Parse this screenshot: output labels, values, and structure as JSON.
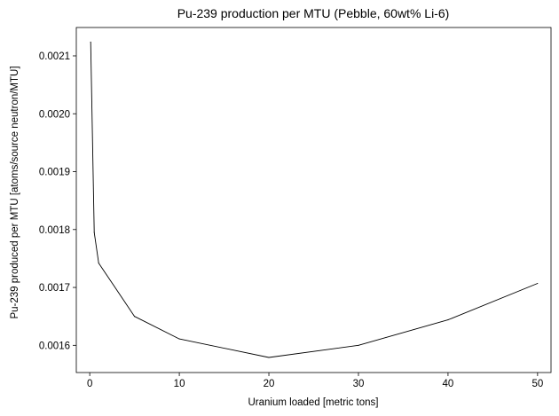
{
  "chart_data": {
    "type": "line",
    "title": "Pu-239 production per MTU (Pebble, 60wt% Li-6)",
    "xlabel": "Uranium loaded [metric tons]",
    "ylabel": "Pu-239 produced per MTU [atoms/source neutron/MTU]",
    "xlim": [
      -1.5,
      51.5
    ],
    "ylim": [
      0.001553,
      0.002149
    ],
    "xticks": [
      0,
      10,
      20,
      30,
      40,
      50
    ],
    "xtick_labels": [
      "0",
      "10",
      "20",
      "30",
      "40",
      "50"
    ],
    "yticks": [
      0.0016,
      0.0017,
      0.0018,
      0.0019,
      0.002,
      0.0021
    ],
    "ytick_labels": [
      "0.0016",
      "0.0017",
      "0.0018",
      "0.0019",
      "0.0020",
      "0.0021"
    ],
    "grid": false,
    "legend": "none",
    "series": [
      {
        "color": "#000000",
        "x": [
          0.1,
          0.5,
          1,
          5,
          10,
          20,
          30,
          40,
          50
        ],
        "y": [
          0.002124,
          0.001795,
          0.001742,
          0.00165,
          0.001611,
          0.001579,
          0.0016,
          0.001644,
          0.001707
        ]
      }
    ]
  }
}
